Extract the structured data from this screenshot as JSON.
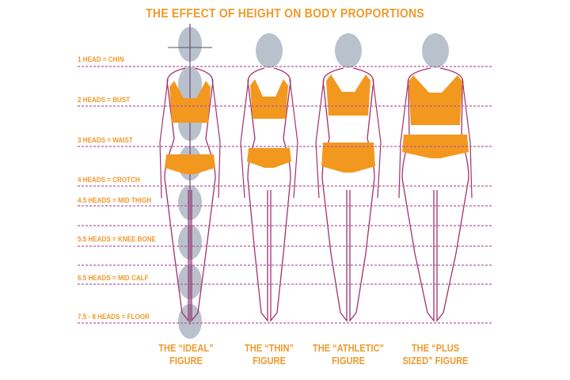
{
  "title": "THE EFFECT OF HEIGHT ON BODY PROPORTIONS",
  "proportion_labels": [
    "1 HEAD = CHIN",
    "2 HEADS = BUST",
    "3 HEADS = WAIST",
    "4 HEADS = CROTCH",
    "4.5 HEADS = MID THIGH",
    "5.5 HEADS = KNEE BONE",
    "6.5 HEADS = MID CALF",
    "7.5 - 8 HEADS = FLOOR"
  ],
  "figures": [
    {
      "line1": "THE “IDEAL”",
      "line2": "FIGURE"
    },
    {
      "line1": "THE “THIN”",
      "line2": "FIGURE"
    },
    {
      "line1": "THE  “ATHLETIC”",
      "line2": "FIGURE"
    },
    {
      "line1": "THE “PLUS",
      "line2": "SIZED” FIGURE"
    }
  ],
  "colors": {
    "accent": "#ef9a2e",
    "garment": "#f3981f",
    "outline": "#a3306e",
    "head": "#b9c2cc",
    "guide": "#b45c9c"
  }
}
